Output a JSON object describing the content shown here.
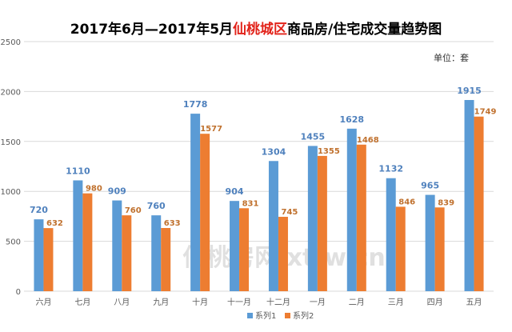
{
  "title": {
    "prefix": "2017年6月—2017年5月",
    "highlight": "仙桃城区",
    "suffix": "商品房/住宅成交量趋势图",
    "highlight_color": "#e2231a"
  },
  "unit_label": "单位：套",
  "watermark": "仙桃房网 xtfw.cn",
  "colors": {
    "series1": "#5b9bd5",
    "series2": "#ed7d31",
    "label1": "#4f81bd",
    "label2": "#c0712e",
    "grid": "#d9d9d9",
    "axis_text": "#595959"
  },
  "chart_data": {
    "type": "bar",
    "categories": [
      "六月",
      "七月",
      "八月",
      "九月",
      "十月",
      "十一月",
      "十二月",
      "一月",
      "二月",
      "三月",
      "四月",
      "五月"
    ],
    "series": [
      {
        "name": "系列1",
        "values": [
          720,
          1110,
          909,
          760,
          1778,
          904,
          1304,
          1455,
          1628,
          1132,
          965,
          1915
        ]
      },
      {
        "name": "系列2",
        "values": [
          632,
          980,
          760,
          633,
          1577,
          831,
          745,
          1355,
          1468,
          846,
          839,
          1749
        ]
      }
    ],
    "ylim": [
      0,
      2500
    ],
    "yticks": [
      0,
      500,
      1000,
      1500,
      2000,
      2500
    ],
    "grid": true,
    "legend_position": "bottom"
  }
}
